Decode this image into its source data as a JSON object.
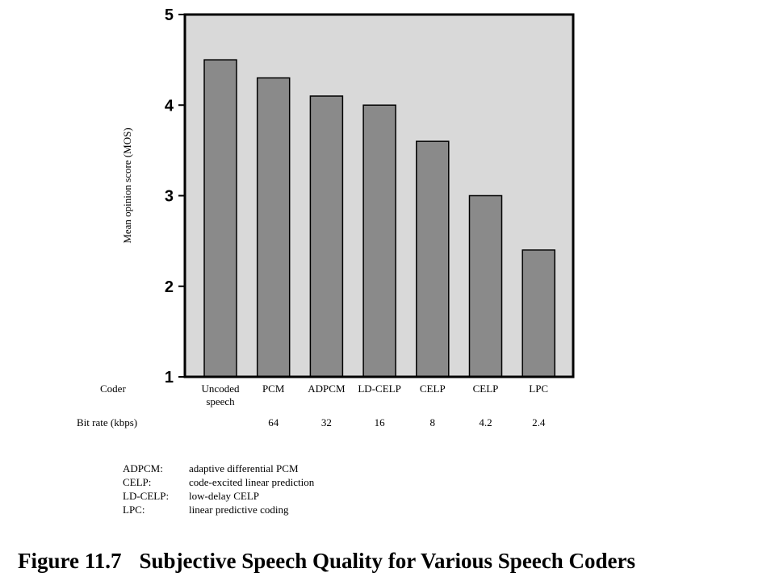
{
  "chart_data": {
    "type": "bar",
    "ylabel": "Mean opinion score (MOS)",
    "ylim": [
      1,
      5
    ],
    "yticks": [
      "1",
      "2",
      "3",
      "4",
      "5"
    ],
    "row_labels": {
      "coder": "Coder",
      "bitrate": "Bit rate (kbps)"
    },
    "categories": [
      {
        "lines": [
          "Uncoded",
          "speech"
        ],
        "bitrate": "",
        "value": 4.5
      },
      {
        "lines": [
          "PCM"
        ],
        "bitrate": "64",
        "value": 4.3
      },
      {
        "lines": [
          "ADPCM"
        ],
        "bitrate": "32",
        "value": 4.1
      },
      {
        "lines": [
          "LD-CELP"
        ],
        "bitrate": "16",
        "value": 4.0
      },
      {
        "lines": [
          "CELP"
        ],
        "bitrate": "8",
        "value": 3.6
      },
      {
        "lines": [
          "CELP"
        ],
        "bitrate": "4.2",
        "value": 3.0
      },
      {
        "lines": [
          "LPC"
        ],
        "bitrate": "2.4",
        "value": 2.4
      }
    ],
    "grid": false,
    "colors": {
      "plot_background": "#d9d9d9",
      "bar_fill": "#8a8a8a",
      "frame": "#000000"
    }
  },
  "glossary": [
    {
      "abbr": "ADPCM:",
      "definition": "adaptive differential PCM"
    },
    {
      "abbr": "CELP:",
      "definition": "code-excited linear prediction"
    },
    {
      "abbr": "LD-CELP:",
      "definition": "low-delay CELP"
    },
    {
      "abbr": "LPC:",
      "definition": "linear predictive coding"
    }
  ],
  "caption": {
    "number": "Figure 11.7",
    "title": "Subjective Speech Quality for Various Speech Coders"
  }
}
